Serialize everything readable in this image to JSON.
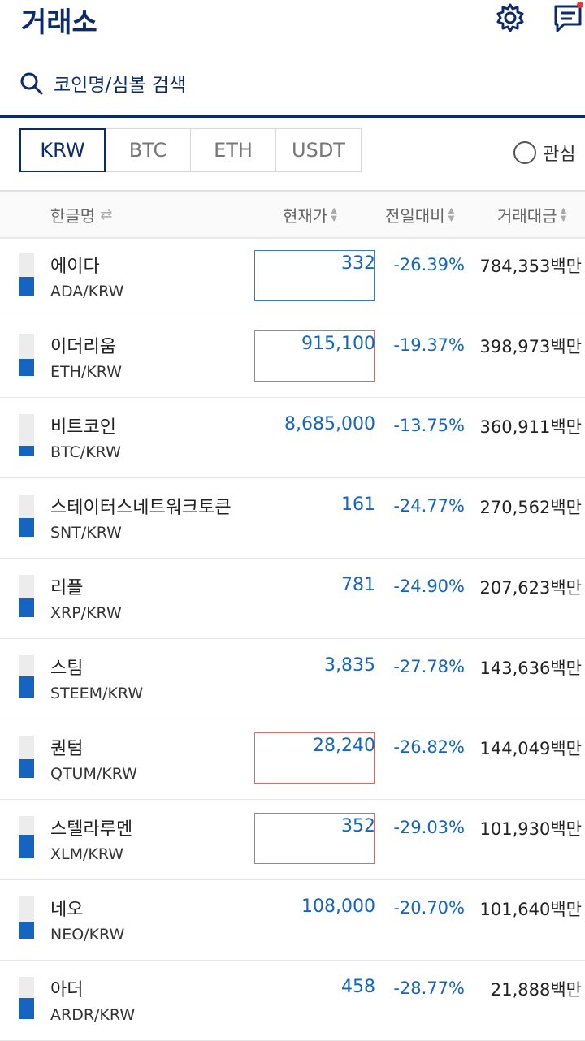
{
  "header": {
    "title": "거래소"
  },
  "search": {
    "placeholder": "코인명/심볼 검색"
  },
  "tabs": [
    {
      "label": "KRW",
      "active": true
    },
    {
      "label": "BTC",
      "active": false
    },
    {
      "label": "ETH",
      "active": false
    },
    {
      "label": "USDT",
      "active": false
    }
  ],
  "favorites": {
    "label": "관심"
  },
  "columns": {
    "name": "한글명",
    "price": "현재가",
    "change": "전일대비",
    "volume": "거래대금"
  },
  "colors": {
    "brand": "#0d2a6b",
    "down": "#1565c0",
    "up": "#d46a6a"
  },
  "rows": [
    {
      "name": "에이다",
      "pair": "ADA/KRW",
      "price": "332",
      "change": "-26.39%",
      "volume": "784,353백만",
      "bar_fill": 0.45,
      "highlight": "blue"
    },
    {
      "name": "이더리움",
      "pair": "ETH/KRW",
      "price": "915,100",
      "change": "-19.37%",
      "volume": "398,973백만",
      "bar_fill": 0.4,
      "highlight": "red"
    },
    {
      "name": "비트코인",
      "pair": "BTC/KRW",
      "price": "8,685,000",
      "change": "-13.75%",
      "volume": "360,911백만",
      "bar_fill": 0.25,
      "highlight": ""
    },
    {
      "name": "스테이터스네트워크토큰",
      "pair": "SNT/KRW",
      "price": "161",
      "change": "-24.77%",
      "volume": "270,562백만",
      "bar_fill": 0.45,
      "highlight": ""
    },
    {
      "name": "리플",
      "pair": "XRP/KRW",
      "price": "781",
      "change": "-24.90%",
      "volume": "207,623백만",
      "bar_fill": 0.45,
      "highlight": ""
    },
    {
      "name": "스팀",
      "pair": "STEEM/KRW",
      "price": "3,835",
      "change": "-27.78%",
      "volume": "143,636백만",
      "bar_fill": 0.5,
      "highlight": ""
    },
    {
      "name": "퀀텀",
      "pair": "QTUM/KRW",
      "price": "28,240",
      "change": "-26.82%",
      "volume": "144,049백만",
      "bar_fill": 0.45,
      "highlight": "red"
    },
    {
      "name": "스텔라루멘",
      "pair": "XLM/KRW",
      "price": "352",
      "change": "-29.03%",
      "volume": "101,930백만",
      "bar_fill": 0.55,
      "highlight": "red"
    },
    {
      "name": "네오",
      "pair": "NEO/KRW",
      "price": "108,000",
      "change": "-20.70%",
      "volume": "101,640백만",
      "bar_fill": 0.4,
      "highlight": ""
    },
    {
      "name": "아더",
      "pair": "ARDR/KRW",
      "price": "458",
      "change": "-28.77%",
      "volume": "21,888백만",
      "bar_fill": 0.5,
      "highlight": ""
    }
  ]
}
